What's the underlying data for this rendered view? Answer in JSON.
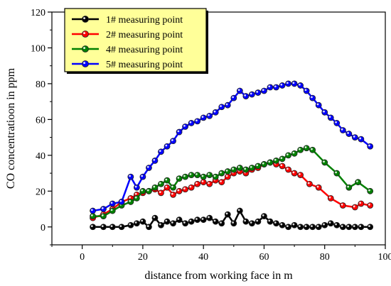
{
  "chart_data": {
    "type": "line",
    "xlabel": "distance from working face in m",
    "ylabel": "CO concentratioon in ppm",
    "xlim": [
      -10,
      100
    ],
    "ylim": [
      -10,
      120
    ],
    "xticks": [
      0,
      20,
      40,
      60,
      80,
      100
    ],
    "yticks": [
      0,
      20,
      40,
      60,
      80,
      100,
      120
    ],
    "legend_position": "top-left",
    "legend_background": "#ffff99",
    "series": [
      {
        "name": "1# measuring point",
        "color": "#000000",
        "x": [
          3.5,
          7,
          10,
          13,
          16,
          18,
          20,
          22,
          24,
          26,
          28,
          30,
          32,
          34,
          36,
          38,
          40,
          42,
          44,
          46,
          48,
          50,
          52,
          54,
          56,
          58,
          60,
          62,
          64,
          66,
          68,
          70,
          72,
          74,
          76,
          78,
          80,
          82,
          84,
          86,
          88,
          90,
          92,
          95
        ],
        "values": [
          0,
          0,
          0,
          0,
          1,
          2,
          3,
          0,
          5,
          1,
          3,
          2,
          4,
          2,
          3,
          4,
          4,
          5,
          3,
          2,
          7,
          2,
          9,
          3,
          2,
          3,
          6,
          3,
          2,
          1,
          0,
          1,
          0,
          0,
          0,
          0,
          1,
          2,
          1,
          0,
          0,
          0,
          0,
          0
        ]
      },
      {
        "name": "2# measuring point",
        "color": "#ff0000",
        "x": [
          3.5,
          7,
          10,
          13,
          16,
          18,
          20,
          22,
          24,
          26,
          28,
          30,
          32,
          34,
          36,
          38,
          40,
          42,
          44,
          46,
          48,
          50,
          52,
          54,
          56,
          58,
          60,
          62,
          64,
          66,
          68,
          70,
          72,
          75,
          78,
          82,
          86,
          90,
          92,
          95
        ],
        "values": [
          5,
          7,
          10,
          14,
          16,
          18,
          19,
          20,
          21,
          19,
          22,
          18,
          20,
          21,
          22,
          24,
          25,
          24,
          26,
          25,
          28,
          30,
          31,
          30,
          32,
          33,
          35,
          36,
          35,
          34,
          32,
          30,
          29,
          24,
          22,
          16,
          12,
          11,
          13,
          12
        ]
      },
      {
        "name": "4# measuring point",
        "color": "#008000",
        "x": [
          3.5,
          7,
          10,
          13,
          16,
          18,
          20,
          22,
          24,
          26,
          28,
          30,
          32,
          34,
          36,
          38,
          40,
          42,
          44,
          46,
          48,
          50,
          52,
          54,
          56,
          58,
          60,
          62,
          64,
          66,
          68,
          70,
          72,
          74,
          76,
          80,
          84,
          88,
          91,
          95
        ],
        "values": [
          6,
          6,
          9,
          12,
          14,
          16,
          20,
          20,
          22,
          24,
          26,
          22,
          27,
          28,
          29,
          29,
          28,
          29,
          28,
          30,
          31,
          32,
          33,
          32,
          33,
          34,
          35,
          36,
          37,
          38,
          40,
          41,
          43,
          44,
          43,
          36,
          30,
          22,
          25,
          20
        ]
      },
      {
        "name": "5# measuring point",
        "color": "#0000ff",
        "x": [
          3.5,
          7,
          10,
          13,
          16,
          18,
          20,
          22,
          24,
          26,
          28,
          30,
          32,
          34,
          36,
          38,
          40,
          42,
          44,
          46,
          48,
          50,
          52,
          54,
          56,
          58,
          60,
          62,
          64,
          66,
          68,
          70,
          72,
          74,
          76,
          78,
          80,
          82,
          84,
          86,
          88,
          90,
          92,
          95
        ],
        "values": [
          9,
          10,
          13,
          14,
          28,
          22,
          28,
          33,
          37,
          42,
          45,
          48,
          53,
          56,
          58,
          59,
          61,
          62,
          64,
          67,
          68,
          72,
          76,
          73,
          74,
          75,
          76,
          78,
          78,
          79,
          80,
          80,
          79,
          76,
          72,
          68,
          64,
          61,
          58,
          54,
          52,
          50,
          49,
          45
        ]
      }
    ]
  }
}
